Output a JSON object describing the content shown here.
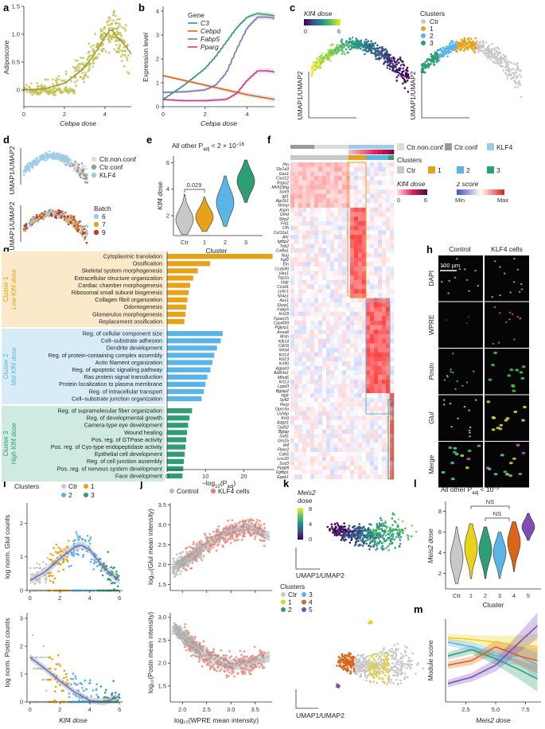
{
  "panel_labels": [
    "a",
    "b",
    "c",
    "d",
    "e",
    "f",
    "g",
    "h",
    "i",
    "j",
    "k",
    "l",
    "m"
  ],
  "colors": {
    "olive": "#bfbf4f",
    "olive_dark": "#9e9a2b",
    "ctr_gray": "#c8c8c8",
    "c1_orange": "#e8a21a",
    "c2_blue": "#5ab4e6",
    "c3_green": "#2e9e73",
    "c4_darkorange": "#d9641a",
    "c5_purple": "#7d4fb5",
    "ctr_nonconf": "#dcdcdc",
    "ctr_conf": "#9a9a9a",
    "klf4_lightblue": "#9fcbe8",
    "control_gray": "#bbbbbb",
    "klf4cells_salmon": "#e9837a",
    "go_c1_bg": "#fbe9c9",
    "go_c2_bg": "#d8ecf8",
    "go_c3_bg": "#cfeadf"
  },
  "panel_a": {
    "ylabel": "Adiposcore",
    "xlabel": "Cebpa dose",
    "chart_data": {
      "type": "scatter",
      "xlim": [
        0,
        5.3
      ],
      "ylim": [
        -0.3,
        1.5
      ],
      "xticks": [
        "0",
        "2",
        "4"
      ],
      "yticks": [
        "0",
        "0.5",
        "1.0",
        "1.5"
      ],
      "trend": {
        "x": [
          0,
          1,
          2,
          2.5,
          3,
          3.5,
          4,
          4.3,
          4.6,
          5,
          5.3
        ],
        "y": [
          0.0,
          0.02,
          0.12,
          0.25,
          0.4,
          0.65,
          0.95,
          1.1,
          0.95,
          0.8,
          0.65
        ]
      }
    }
  },
  "panel_b": {
    "ylabel": "Expression level",
    "xlabel": "Cebpa dose",
    "legend_title": "Gene",
    "chart_data": {
      "type": "line",
      "xlim": [
        0,
        5.3
      ],
      "ylim": [
        0,
        4.2
      ],
      "xticks": [
        "0",
        "2",
        "4"
      ],
      "yticks": [
        "0",
        "1",
        "2",
        "3",
        "4"
      ],
      "series": [
        {
          "name": "C3",
          "color": "#2e9e73",
          "x": [
            0,
            1,
            2,
            2.5,
            3,
            3.5,
            4,
            4.5,
            5,
            5.3
          ],
          "y": [
            0.3,
            0.9,
            1.6,
            2.1,
            2.7,
            3.3,
            3.75,
            3.9,
            3.85,
            3.8
          ]
        },
        {
          "name": "Cebpd",
          "color": "#d9641a",
          "x": [
            0,
            1,
            2,
            3,
            4,
            5,
            5.3
          ],
          "y": [
            1.3,
            1.1,
            0.9,
            0.7,
            0.5,
            0.35,
            0.3
          ]
        },
        {
          "name": "Fabp5",
          "color": "#7d74b5",
          "x": [
            0,
            1,
            2,
            2.5,
            3,
            3.5,
            4,
            4.5,
            5,
            5.3
          ],
          "y": [
            0.6,
            0.62,
            0.7,
            0.9,
            1.4,
            2.4,
            3.3,
            3.75,
            3.75,
            3.7
          ]
        },
        {
          "name": "Pparg",
          "color": "#d6338b",
          "x": [
            0,
            1,
            2,
            3,
            3.5,
            4,
            4.5,
            5,
            5.3
          ],
          "y": [
            0.3,
            0.25,
            0.25,
            0.3,
            0.55,
            1.1,
            1.5,
            1.5,
            1.45
          ]
        }
      ]
    }
  },
  "panel_c": {
    "dose_title": "Klf4 dose",
    "dose_ticks": [
      "0",
      "6"
    ],
    "axis_label": "UMAP1/UMAP2",
    "clusters_title": "Clusters",
    "clusters": [
      {
        "label": "Ctr",
        "color": "#c8c8c8"
      },
      {
        "label": "1",
        "color": "#e8a21a"
      },
      {
        "label": "2",
        "color": "#5ab4e6"
      },
      {
        "label": "3",
        "color": "#2e9e73"
      }
    ]
  },
  "panel_d": {
    "axis_label": "UMAP1/UMAP2",
    "groups": [
      {
        "label": "Ctr.non.conf",
        "color": "#dcdcdc"
      },
      {
        "label": "Ctr.conf",
        "color": "#9a9a9a"
      },
      {
        "label": "KLF4",
        "color": "#9fcbe8"
      }
    ],
    "batch_title": "Batch",
    "batches": [
      {
        "label": "6",
        "color": "#9fcbe8"
      },
      {
        "label": "7",
        "color": "#e8a21a"
      },
      {
        "label": "9",
        "color": "#c0392b"
      }
    ]
  },
  "panel_e": {
    "title": "All other P",
    "title_sub": "adj",
    "title_rest": " < 2 × 10",
    "title_sup": "−16",
    "pvalue": "0.029",
    "ylabel": "Klf4 dose",
    "xlabel": "Cluster",
    "chart_data": {
      "type": "violin",
      "categories": [
        "Ctr",
        "1",
        "2",
        "3"
      ],
      "medians": [
        1.7,
        1.9,
        3.0,
        4.6
      ],
      "ylim": [
        0.5,
        6.5
      ],
      "yticks": [
        "2",
        "4",
        "6"
      ]
    }
  },
  "panel_f": {
    "genes": [
      "Ptn",
      "Slc1a3",
      "Gas1",
      "Cxcl12",
      "Rspo2",
      "Mir503hg",
      "Sox9",
      "Igf1",
      "Atp1b1",
      "Nnmp",
      "Aspn",
      "Omd",
      "Sfrp2",
      "Fhl1",
      "Cfh",
      "Col12a1",
      "Ahr",
      "Igfbp2",
      "Trib2",
      "Col8a1",
      "Nog",
      "Fgf2",
      "Eln",
      "Ccdc80",
      "Hes1",
      "Top2a",
      "Vldlr",
      "Ccnd1",
      "Ly6c1",
      "Nr4a1",
      "Ass1",
      "Slurp1",
      "Fabp5",
      "Krt18",
      "Tspan15",
      "Cyp4f39",
      "Pglyrp1",
      "Anxa8",
      "Msln",
      "Klk14",
      "Cdc5l",
      "Wnt4",
      "Krt14",
      "Krt13",
      "Krt90",
      "Agpat3",
      "Aldh3a1",
      "Mfsd6",
      "Krt13",
      "Lypd3",
      "Bglap2",
      "Ngfr",
      "Sytl2",
      "Perp",
      "Gprc5a",
      "Ushbp",
      "Krt3",
      "Adgrl1",
      "Tpd52",
      "Bglap",
      "Sult1",
      "Gm2a",
      "Id4",
      "Fbxo2",
      "Cdh5",
      "Lrrc20",
      "Scd3",
      "Ppdpfl",
      "Fgfbp1",
      "Eppk1"
    ],
    "legend": {
      "groups": [
        {
          "label": "Ctr.non.conf",
          "color": "#dcdcdc"
        },
        {
          "label": "Ctr.conf",
          "color": "#9a9a9a"
        },
        {
          "label": "KLF4",
          "color": "#9fcbe8"
        }
      ],
      "clusters_title": "Clusters",
      "clusters": [
        {
          "label": "Ctr",
          "color": "#c8c8c8"
        },
        {
          "label": "1",
          "color": "#e8a21a"
        },
        {
          "label": "2",
          "color": "#5ab4e6"
        },
        {
          "label": "3",
          "color": "#2e9e73"
        }
      ],
      "dose_title": "Klf4 dose",
      "dose_ticks": [
        "0",
        "6"
      ],
      "z_title": "z score",
      "z_ticks": [
        "Min",
        "Max"
      ]
    }
  },
  "panel_g": {
    "xlabel": "−log",
    "xlabel_sub": "10",
    "xlabel_rest": "(P",
    "xlabel_sub2": "adj",
    "xlabel_end": ")",
    "xticks": [
      "0",
      "10",
      "20"
    ],
    "groups": [
      {
        "title": "Cluster 1",
        "subtitle": "Low Klf4 dose",
        "color": "#e8a21a",
        "bg": "#fbe9c9",
        "terms": [
          "Cytoplasmic translation",
          "Ossification",
          "Skeletal system morphogenesis",
          "Extracellular structure organization",
          "Cardiac chamber morphogenesis",
          "Ribosomal small subunit biogenesis",
          "Collagen fibril organization",
          "Odontogenesis",
          "Glomerulus morphogenesis",
          "Replacement ossification"
        ],
        "values": [
          27.5,
          11.2,
          8.0,
          6.8,
          6.0,
          5.6,
          5.3,
          5.0,
          4.8,
          4.5
        ]
      },
      {
        "title": "Cluster 2",
        "subtitle": "Mid Klf4 dose",
        "color": "#5ab4e6",
        "bg": "#d8ecf8",
        "terms": [
          "Reg. of cellular component size",
          "Cell–substrate adhesion",
          "Dendrite development",
          "Reg. of protein-containing complex assembly",
          "Actin filament organization",
          "Reg. of apoptotic signaling pathway",
          "Ras protein signal transduction",
          "Protein localization to plasma membrane",
          "Reg. of intracellular transport",
          "Cell–substrate junction organization"
        ],
        "values": [
          14.5,
          14.0,
          13.0,
          12.3,
          11.8,
          11.3,
          10.5,
          10.0,
          9.6,
          9.0
        ]
      },
      {
        "title": "Cluster 3",
        "subtitle": "High Klf4 dose",
        "color": "#2e9e73",
        "bg": "#cfeadf",
        "terms": [
          "Reg. of supramolecular fiber organization",
          "Reg. of developmental growth",
          "Camera-type eye development",
          "Wound healing",
          "Pos. reg. of GTPase activity",
          "Pos. reg. of Cys-type endopeptidase activity",
          "Epithelial cell development",
          "Reg. of cell junction assembly",
          "Pos. reg. of nervous system development",
          "Face development"
        ],
        "values": [
          6.5,
          5.8,
          5.5,
          5.2,
          5.0,
          4.8,
          4.6,
          4.4,
          4.2,
          4.0
        ]
      }
    ]
  },
  "panel_h": {
    "columns": [
      "Control",
      "KLF4 cells"
    ],
    "rows": [
      "DAPI",
      "WPRE",
      "Postn",
      "Glul",
      "Merge"
    ],
    "scale_bar": "100 µm"
  },
  "panel_i": {
    "legend_title": "Clusters",
    "legend": [
      {
        "label": "Ctr",
        "color": "#c8c8c8"
      },
      {
        "label": "1",
        "color": "#e8a21a"
      },
      {
        "label": "2",
        "color": "#5ab4e6"
      },
      {
        "label": "3",
        "color": "#2e9e73"
      }
    ],
    "top_ylabel": "log norm. Glul counts",
    "bottom_ylabel": "log norm. Postn counts",
    "xlabel": "Klf4 dose",
    "xticks": [
      "0",
      "2",
      "4",
      "6"
    ],
    "chart_data": [
      {
        "type": "scatter",
        "ylim": [
          0,
          2.6
        ],
        "yticks": [
          "0",
          "1",
          "2"
        ],
        "trend": {
          "x": [
            0,
            1,
            2,
            3,
            3.5,
            4,
            5,
            6
          ],
          "y": [
            0.3,
            0.55,
            0.95,
            1.3,
            1.35,
            1.2,
            0.65,
            0.3
          ]
        }
      },
      {
        "type": "scatter",
        "ylim": [
          0,
          3.2
        ],
        "yticks": [
          "0",
          "1",
          "2",
          "3"
        ],
        "trend": {
          "x": [
            0,
            1,
            2,
            3,
            4,
            5,
            6
          ],
          "y": [
            1.6,
            1.2,
            0.75,
            0.35,
            0.05,
            0.0,
            0.2
          ]
        }
      }
    ]
  },
  "panel_j": {
    "legend": [
      {
        "label": "Control",
        "color": "#bbbbbb"
      },
      {
        "label": "KLF4 cells",
        "color": "#e9837a"
      }
    ],
    "top_ylabel": "log₁₀(Glul mean intensity)",
    "bottom_ylabel": "log₁₀(Postn mean intensity)",
    "xlabel": "log₁₀(WPRE mean intensity)",
    "xticks": [
      "2.0",
      "2.5",
      "3.0",
      "3.5"
    ],
    "chart_data": [
      {
        "type": "scatter",
        "ylim": [
          1.35,
          3.55
        ],
        "yticks": [
          "1.5",
          "2.0",
          "2.5",
          "3.0",
          "3.5"
        ],
        "trend": {
          "x": [
            1.85,
            2.2,
            2.6,
            3.0,
            3.4,
            3.8
          ],
          "y": [
            1.95,
            2.2,
            2.6,
            2.85,
            2.95,
            2.7
          ]
        }
      },
      {
        "type": "scatter",
        "ylim": [
          1.15,
          3.1
        ],
        "yticks": [
          "1.5",
          "2.0",
          "2.5",
          "3.0"
        ],
        "trend": {
          "x": [
            1.85,
            2.2,
            2.6,
            3.0,
            3.4,
            3.8
          ],
          "y": [
            2.75,
            2.4,
            2.1,
            1.95,
            2.0,
            2.15
          ]
        }
      }
    ]
  },
  "panel_k": {
    "dose_title": "Meis2",
    "dose_title2": "dose",
    "dose_ticks": [
      "0",
      "4",
      "8"
    ],
    "axis_label": "UMAP1/UMAP2",
    "clusters_title": "Clusters",
    "clusters": [
      {
        "label": "Ctr",
        "color": "#c8c8c8"
      },
      {
        "label": "1",
        "color": "#e8d21a"
      },
      {
        "label": "2",
        "color": "#2e9e73"
      },
      {
        "label": "3",
        "color": "#5ab4e6"
      },
      {
        "label": "4",
        "color": "#d9641a"
      },
      {
        "label": "5",
        "color": "#7d4fb5"
      }
    ]
  },
  "panel_l": {
    "title": "All other P",
    "title_sub": "adj",
    "title_rest": " < 10",
    "title_sup": "−5",
    "ns1": "NS",
    "ns2": "NS",
    "ylabel": "Meis2 dose",
    "xlabel": "Cluster",
    "chart_data": {
      "type": "violin",
      "categories": [
        "Ctr",
        "1",
        "2",
        "3",
        "4",
        "5"
      ],
      "colors": [
        "#c8c8c8",
        "#e8d21a",
        "#2e9e73",
        "#5ab4e6",
        "#d9641a",
        "#7d4fb5"
      ],
      "medians": [
        3.5,
        4.5,
        4.3,
        4.0,
        5.0,
        6.5
      ],
      "ylim": [
        0.5,
        8.5
      ],
      "yticks": [
        "2",
        "4",
        "6",
        "8"
      ]
    }
  },
  "panel_m": {
    "ylabel": "Module score",
    "xlabel": "Meis2 dose",
    "xticks": [
      "2.5",
      "5.0",
      "7.5"
    ],
    "chart_data": {
      "type": "line",
      "xlim": [
        0.8,
        8.8
      ],
      "ylim": [
        -0.35,
        0.55
      ],
      "series": [
        {
          "color": "#e8d21a",
          "x": [
            1,
            3,
            5,
            7,
            8.5
          ],
          "y": [
            0.35,
            0.33,
            0.3,
            0.27,
            0.25
          ]
        },
        {
          "color": "#2e9e73",
          "x": [
            1,
            3,
            5,
            7,
            8.5
          ],
          "y": [
            0.15,
            0.22,
            0.12,
            0.0,
            -0.1
          ]
        },
        {
          "color": "#5ab4e6",
          "x": [
            1,
            3,
            5,
            7,
            8.5
          ],
          "y": [
            0.3,
            0.25,
            0.15,
            0.15,
            0.05
          ]
        },
        {
          "color": "#d9641a",
          "x": [
            1,
            3,
            5,
            7,
            8.5
          ],
          "y": [
            0.05,
            0.1,
            0.25,
            0.15,
            0.1
          ]
        },
        {
          "color": "#7d4fb5",
          "x": [
            1,
            3,
            5,
            7,
            8.5
          ],
          "y": [
            -0.15,
            -0.08,
            0.05,
            0.3,
            0.48
          ]
        }
      ]
    }
  }
}
